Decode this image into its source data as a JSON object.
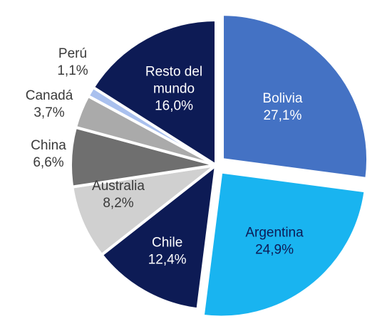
{
  "chart_data": {
    "type": "pie",
    "title": "",
    "slices": [
      {
        "label": "Bolivia",
        "value": 27.1,
        "value_label": "27,1%",
        "color": "#4472c4",
        "text_color": "#ffffff",
        "exploded": true
      },
      {
        "label": "Argentina",
        "value": 24.9,
        "value_label": "24,9%",
        "color": "#19b4f0",
        "text_color": "#0d1b55",
        "exploded": true
      },
      {
        "label": "Chile",
        "value": 12.4,
        "value_label": "12,4%",
        "color": "#0d1b55",
        "text_color": "#ffffff",
        "exploded": false
      },
      {
        "label": "Australia",
        "value": 8.2,
        "value_label": "8,2%",
        "color": "#d0d0d0",
        "text_color": "#3a3a3a",
        "exploded": false
      },
      {
        "label": "China",
        "value": 6.6,
        "value_label": "6,6%",
        "color": "#6f6f6f",
        "text_color": "#3a3a3a",
        "exploded": false
      },
      {
        "label": "Canadá",
        "value": 3.7,
        "value_label": "3,7%",
        "color": "#aaaaaa",
        "text_color": "#3a3a3a",
        "exploded": false
      },
      {
        "label": "Perú",
        "value": 1.1,
        "value_label": "1,1%",
        "color": "#a9c0ee",
        "text_color": "#3a3a3a",
        "exploded": false
      },
      {
        "label": "Resto del mundo",
        "value": 16.0,
        "value_label": "16,0%",
        "color": "#0d1b55",
        "text_color": "#ffffff",
        "exploded": false
      }
    ]
  }
}
